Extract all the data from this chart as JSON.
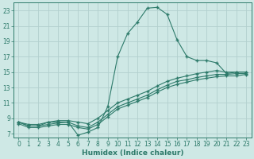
{
  "xlabel": "Humidex (Indice chaleur)",
  "background_color": "#cee8e5",
  "grid_color": "#b2d0ce",
  "line_color": "#2d7a6a",
  "xlim": [
    -0.5,
    23.5
  ],
  "ylim": [
    6.5,
    24.0
  ],
  "yticks": [
    7,
    9,
    11,
    13,
    15,
    17,
    19,
    21,
    23
  ],
  "xticks": [
    0,
    1,
    2,
    3,
    4,
    5,
    6,
    7,
    8,
    9,
    10,
    11,
    12,
    13,
    14,
    15,
    16,
    17,
    18,
    19,
    20,
    21,
    22,
    23
  ],
  "line1_x": [
    0,
    1,
    2,
    3,
    4,
    5,
    6,
    7,
    8,
    9,
    10,
    11,
    12,
    13,
    14,
    15,
    16,
    17,
    18,
    19,
    20,
    21,
    22,
    23
  ],
  "line1_y": [
    8.5,
    8.0,
    8.0,
    8.5,
    8.5,
    8.5,
    6.8,
    7.2,
    7.8,
    10.5,
    17.0,
    20.0,
    21.5,
    23.3,
    23.4,
    22.5,
    19.2,
    17.0,
    16.5,
    16.5,
    16.2,
    14.8,
    15.0,
    15.0
  ],
  "line2_x": [
    0,
    1,
    2,
    3,
    4,
    5,
    6,
    7,
    8,
    9,
    10,
    11,
    12,
    13,
    14,
    15,
    16,
    17,
    18,
    19,
    20,
    21,
    22,
    23
  ],
  "line2_y": [
    8.5,
    8.2,
    8.2,
    8.5,
    8.7,
    8.7,
    8.5,
    8.3,
    9.0,
    10.0,
    11.0,
    11.5,
    12.0,
    12.5,
    13.2,
    13.8,
    14.2,
    14.5,
    14.8,
    15.0,
    15.2,
    15.0,
    15.0,
    15.0
  ],
  "line3_x": [
    0,
    1,
    2,
    3,
    4,
    5,
    6,
    7,
    8,
    9,
    10,
    11,
    12,
    13,
    14,
    15,
    16,
    17,
    18,
    19,
    20,
    21,
    22,
    23
  ],
  "line3_y": [
    8.5,
    8.0,
    8.0,
    8.2,
    8.4,
    8.5,
    8.0,
    7.8,
    8.5,
    9.5,
    10.5,
    11.0,
    11.5,
    12.0,
    12.7,
    13.3,
    13.8,
    14.0,
    14.3,
    14.5,
    14.7,
    14.7,
    14.8,
    14.8
  ],
  "line4_x": [
    0,
    1,
    2,
    3,
    4,
    5,
    6,
    7,
    8,
    9,
    10,
    11,
    12,
    13,
    14,
    15,
    16,
    17,
    18,
    19,
    20,
    21,
    22,
    23
  ],
  "line4_y": [
    8.3,
    7.8,
    7.8,
    8.0,
    8.2,
    8.2,
    7.8,
    7.6,
    8.2,
    9.2,
    10.2,
    10.7,
    11.2,
    11.7,
    12.4,
    13.0,
    13.4,
    13.7,
    14.0,
    14.2,
    14.4,
    14.5,
    14.5,
    14.7
  ]
}
